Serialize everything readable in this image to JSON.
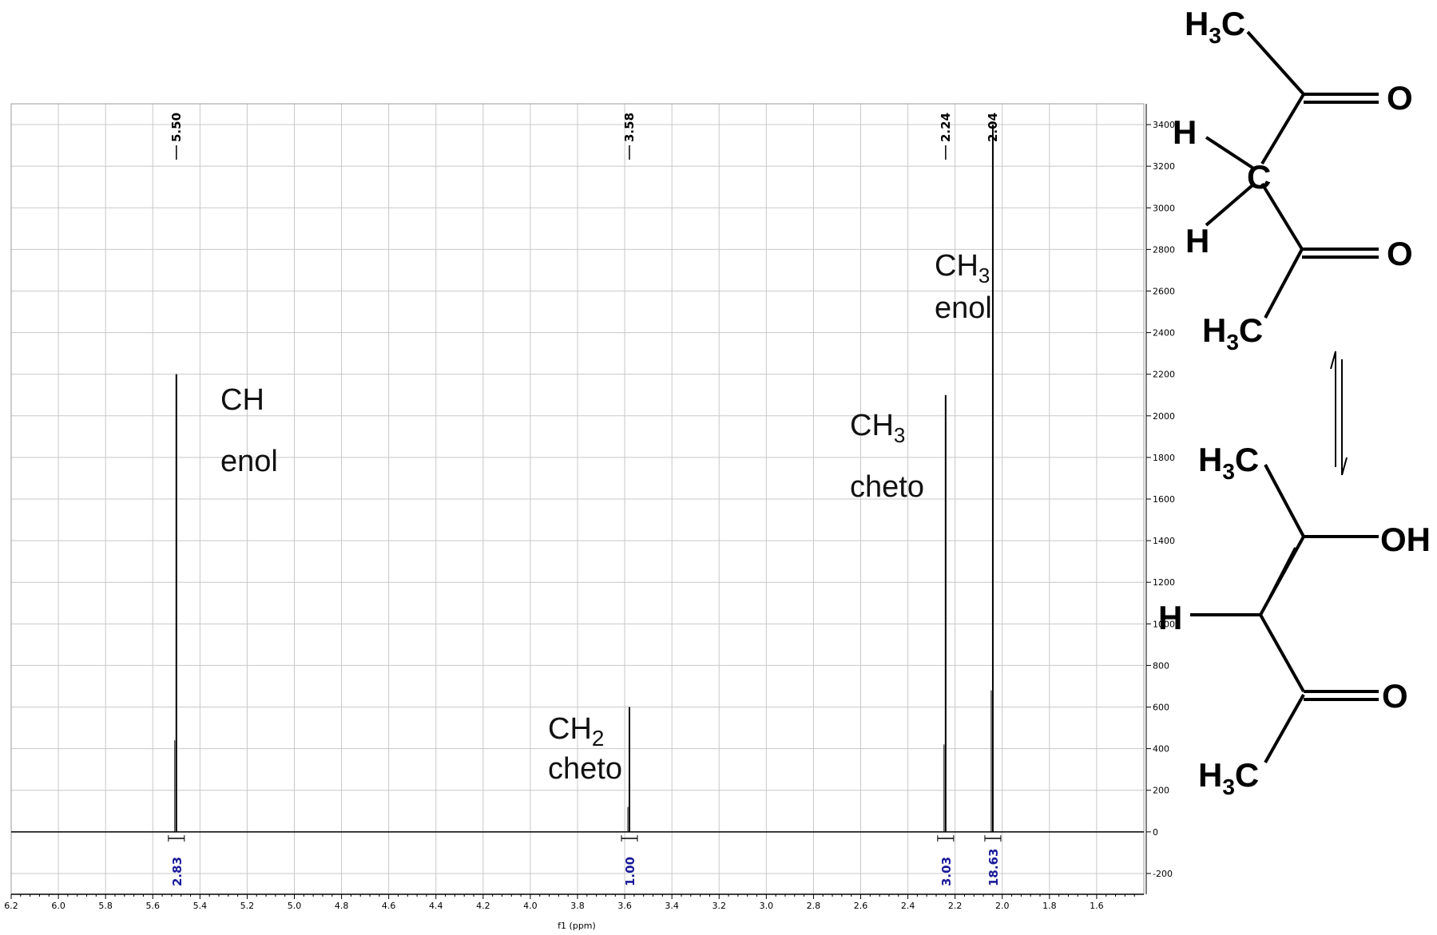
{
  "chart_data": {
    "type": "line",
    "title": "",
    "xlabel": "f1 (ppm)",
    "ylabel": "",
    "xlim": [
      6.2,
      1.4
    ],
    "ylim": [
      -300,
      3500
    ],
    "x_reversed": true,
    "grid": true,
    "x_ticks": [
      "6.2",
      "6.0",
      "5.8",
      "5.6",
      "5.4",
      "5.2",
      "5.0",
      "4.8",
      "4.6",
      "4.4",
      "4.2",
      "4.0",
      "3.8",
      "3.6",
      "3.4",
      "3.2",
      "3.0",
      "2.8",
      "2.6",
      "2.4",
      "2.2",
      "2.0",
      "1.8",
      "1.6"
    ],
    "y_ticks": [
      "3400",
      "3200",
      "3000",
      "2800",
      "2600",
      "2400",
      "2200",
      "2000",
      "1800",
      "1600",
      "1400",
      "1200",
      "1000",
      "800",
      "600",
      "400",
      "200",
      "0",
      "-200"
    ],
    "peaks": [
      {
        "ppm": 5.5,
        "label": "5.50",
        "height": 2200,
        "annotation_line1": "CH",
        "annotation_line2": "enol"
      },
      {
        "ppm": 3.58,
        "label": "3.58",
        "height": 600,
        "annotation_line1": "CH2",
        "annotation_line2": "cheto"
      },
      {
        "ppm": 2.24,
        "label": "2.24",
        "height": 2100,
        "annotation_line1": "CH3",
        "annotation_line2": "cheto"
      },
      {
        "ppm": 2.04,
        "label": "2.04",
        "height": 3400,
        "annotation_line1": "CH3",
        "annotation_line2": "enol"
      }
    ],
    "integrals": [
      {
        "ppm": 5.5,
        "value": "2.83"
      },
      {
        "ppm": 3.58,
        "value": "1.00"
      },
      {
        "ppm": 2.24,
        "value": "3.03"
      },
      {
        "ppm": 2.04,
        "value": "18.63"
      }
    ]
  },
  "molecules": {
    "keto": {
      "h3c_top": "H3C",
      "o_top": "O",
      "h_upper": "H",
      "c_center": "C",
      "h_lower": "H",
      "o_bottom": "O",
      "h3c_bottom": "H3C"
    },
    "enol": {
      "h3c_top": "H3C",
      "oh": "OH",
      "h": "H",
      "o": "O",
      "h3c_bottom": "H3C"
    }
  }
}
